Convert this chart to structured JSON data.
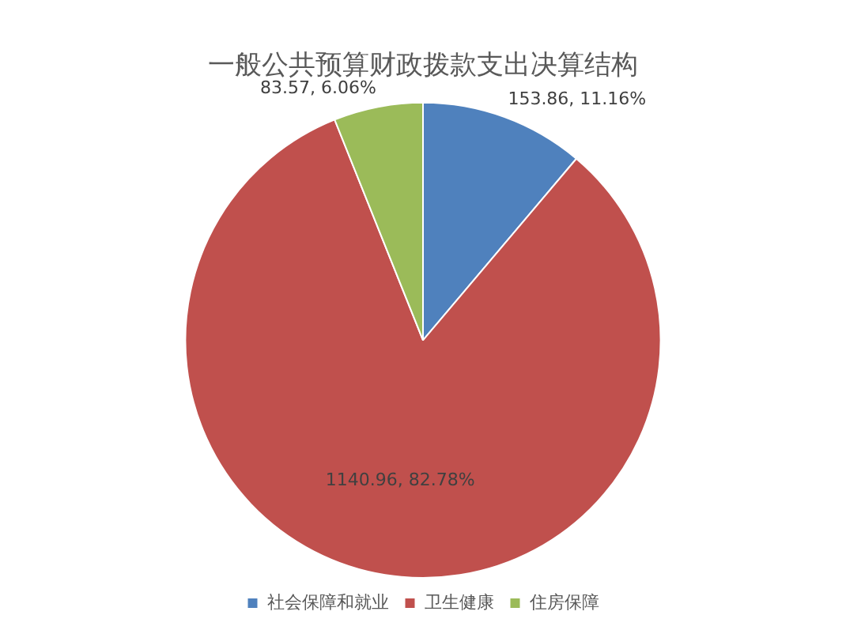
{
  "chart_data": {
    "type": "pie",
    "title": "一般公共预算财政拨款支出决算结构",
    "categories": [
      "社会保障和就业",
      "卫生健康",
      "住房保障"
    ],
    "values": [
      153.86,
      1140.96,
      83.57
    ],
    "value_labels": [
      "153.86, 11.16%",
      "1140.96, 82.78%",
      "83.57, 6.06%"
    ],
    "colors": [
      "#4f81bd",
      "#c0504d",
      "#9bbb59"
    ],
    "legend": "bottom"
  }
}
